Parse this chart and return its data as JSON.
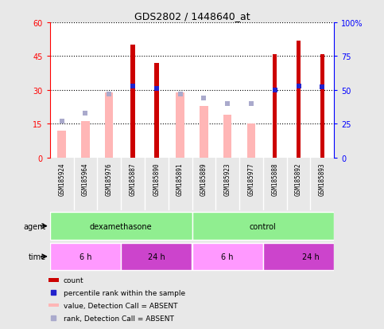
{
  "title": "GDS2802 / 1448640_at",
  "samples": [
    "GSM185924",
    "GSM185964",
    "GSM185976",
    "GSM185887",
    "GSM185890",
    "GSM185891",
    "GSM185889",
    "GSM185923",
    "GSM185977",
    "GSM185888",
    "GSM185892",
    "GSM185893"
  ],
  "count_values": [
    0,
    0,
    0,
    50,
    42,
    0,
    0,
    0,
    0,
    46,
    52,
    46
  ],
  "value_absent": [
    12,
    16,
    29,
    0,
    0,
    29,
    23,
    19,
    15,
    0,
    0,
    0
  ],
  "rank_absent_pct": [
    27,
    33,
    47,
    0,
    0,
    47,
    44,
    40,
    40,
    0,
    0,
    0
  ],
  "percentile_rank": [
    0,
    0,
    0,
    53,
    51,
    0,
    0,
    0,
    0,
    50,
    53,
    52
  ],
  "ylim_left": [
    0,
    60
  ],
  "ylim_right": [
    0,
    100
  ],
  "yticks_left": [
    0,
    15,
    30,
    45,
    60
  ],
  "yticks_right": [
    0,
    25,
    50,
    75,
    100
  ],
  "yticklabels_right": [
    "0",
    "25",
    "50",
    "75",
    "100%"
  ],
  "bar_color_count": "#CC0000",
  "bar_color_value_absent": "#FFB6B6",
  "dot_color_rank_absent": "#AAAACC",
  "dot_color_percentile": "#2222CC",
  "bg_gray": "#C8C8C8",
  "plot_bg": "#FFFFFF",
  "fig_bg": "#E8E8E8"
}
